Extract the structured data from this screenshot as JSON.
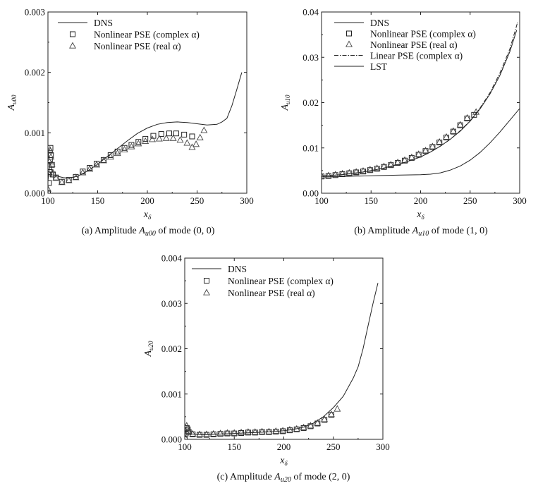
{
  "chart_data": [
    {
      "id": "a",
      "type": "line",
      "caption": "(a) Amplitude A_u00 of mode (0, 0)",
      "caption_parts": {
        "pre": "(a) Amplitude ",
        "sym": "A",
        "sub": "u00",
        "post": " of mode (0, 0)"
      },
      "xlabel": "x",
      "xlabel_sub": "δ",
      "ylabel": "A",
      "ylabel_sub": "u00",
      "xlim": [
        100,
        300
      ],
      "ylim": [
        0,
        0.003
      ],
      "xticks": [
        100,
        150,
        200,
        250,
        300
      ],
      "yticks": [
        0,
        0.001,
        0.002,
        0.003
      ],
      "ytick_labels": [
        "0.000",
        "0.001",
        "0.002",
        "0.003"
      ],
      "legend": {
        "placement": "top-left"
      },
      "series": [
        {
          "name": "DNS",
          "style": "solid",
          "x": [
            100,
            102,
            104,
            106,
            110,
            115,
            120,
            130,
            140,
            150,
            160,
            170,
            180,
            190,
            200,
            210,
            220,
            230,
            240,
            250,
            260,
            270,
            275,
            280,
            285,
            290,
            295
          ],
          "y": [
            0.0002,
            0.0005,
            0.0004,
            0.0003,
            0.00028,
            0.00026,
            0.00025,
            0.00028,
            0.00037,
            0.00048,
            0.00061,
            0.00074,
            0.00087,
            0.00099,
            0.00108,
            0.00114,
            0.00117,
            0.00118,
            0.00117,
            0.00115,
            0.00113,
            0.00114,
            0.00118,
            0.00124,
            0.00145,
            0.00172,
            0.002
          ]
        },
        {
          "name": "Nonlinear PSE (complex α)",
          "style": "square",
          "x": [
            100,
            101,
            101.5,
            102,
            102.5,
            103,
            104,
            105,
            108,
            114,
            121,
            128,
            135,
            142,
            149,
            156,
            163,
            170,
            177,
            184,
            191,
            198,
            206,
            214,
            222,
            229,
            237,
            245
          ],
          "y": [
            0.0,
            0.00017,
            0.00035,
            0.00055,
            0.00075,
            0.00063,
            0.00047,
            0.00031,
            0.00026,
            0.00019,
            0.00022,
            0.00027,
            0.00036,
            0.00042,
            0.00049,
            0.00055,
            0.00063,
            0.00069,
            0.00075,
            0.0008,
            0.00085,
            0.0009,
            0.00095,
            0.00098,
            0.00099,
            0.00099,
            0.00097,
            0.00094
          ]
        },
        {
          "name": "Nonlinear PSE (real α)",
          "style": "triangle",
          "x": [
            100,
            101,
            101.5,
            102,
            102.5,
            103,
            104,
            105,
            108,
            114,
            121,
            128,
            135,
            142,
            149,
            156,
            163,
            170,
            177,
            184,
            191,
            198,
            205,
            212,
            219,
            226,
            233,
            240,
            245,
            249,
            253,
            257
          ],
          "y": [
            7e-05,
            0.00032,
            0.00052,
            0.00072,
            0.0007,
            0.0006,
            0.00048,
            0.00034,
            0.00025,
            0.00018,
            0.00021,
            0.00026,
            0.00034,
            0.0004,
            0.00047,
            0.00054,
            0.0006,
            0.00066,
            0.00072,
            0.00077,
            0.00082,
            0.00086,
            0.00089,
            0.0009,
            0.00091,
            0.00091,
            0.00088,
            0.00083,
            0.00076,
            0.00081,
            0.00092,
            0.00104
          ]
        }
      ]
    },
    {
      "id": "b",
      "type": "line",
      "caption": "(b) Amplitude A_u10 of mode (1, 0)",
      "caption_parts": {
        "pre": "(b) Amplitude ",
        "sym": "A",
        "sub": "u10",
        "post": " of mode (1, 0)"
      },
      "xlabel": "x",
      "xlabel_sub": "δ",
      "ylabel": "A",
      "ylabel_sub": "u10",
      "xlim": [
        100,
        300
      ],
      "ylim": [
        0,
        0.04
      ],
      "xticks": [
        100,
        150,
        200,
        250,
        300
      ],
      "yticks": [
        0,
        0.01,
        0.02,
        0.03,
        0.04
      ],
      "ytick_labels": [
        "0.00",
        "0.01",
        "0.02",
        "0.03",
        "0.04"
      ],
      "legend": {
        "placement": "top-left"
      },
      "series": [
        {
          "name": "DNS",
          "style": "solid",
          "x": [
            100,
            120,
            140,
            160,
            180,
            200,
            210,
            220,
            230,
            240,
            250,
            260,
            270,
            280,
            290,
            297
          ],
          "y": [
            0.0038,
            0.0041,
            0.0046,
            0.0054,
            0.0065,
            0.008,
            0.0091,
            0.0104,
            0.0119,
            0.0137,
            0.0159,
            0.0186,
            0.0219,
            0.026,
            0.0312,
            0.036
          ]
        },
        {
          "name": "Nonlinear PSE (complex α)",
          "style": "square",
          "x": [
            100,
            107,
            114,
            121,
            128,
            135,
            142,
            149,
            156,
            163,
            170,
            177,
            184,
            191,
            198,
            205,
            212,
            219,
            226,
            233,
            240,
            247,
            254
          ],
          "y": [
            0.0037,
            0.0038,
            0.004,
            0.0042,
            0.0044,
            0.0046,
            0.0048,
            0.0051,
            0.0054,
            0.0058,
            0.0062,
            0.0067,
            0.0072,
            0.0078,
            0.0085,
            0.0093,
            0.0102,
            0.0112,
            0.0123,
            0.0136,
            0.015,
            0.0165,
            0.0173
          ]
        },
        {
          "name": "Nonlinear PSE (real α)",
          "style": "triangle",
          "x": [
            100,
            107,
            114,
            121,
            128,
            135,
            142,
            149,
            156,
            163,
            170,
            177,
            184,
            191,
            198,
            205,
            212,
            219,
            226,
            233,
            240,
            247,
            256
          ],
          "y": [
            0.0038,
            0.0039,
            0.0041,
            0.0043,
            0.0045,
            0.0047,
            0.0049,
            0.0052,
            0.0055,
            0.0059,
            0.0063,
            0.0068,
            0.0073,
            0.0079,
            0.0086,
            0.0094,
            0.0103,
            0.0113,
            0.0124,
            0.0137,
            0.0151,
            0.0166,
            0.0179
          ]
        },
        {
          "name": "Linear PSE (complex α)",
          "style": "dashdot",
          "x": [
            100,
            120,
            140,
            160,
            180,
            200,
            210,
            220,
            230,
            240,
            250,
            260,
            270,
            280,
            290,
            298
          ],
          "y": [
            0.0038,
            0.0041,
            0.0046,
            0.0054,
            0.0065,
            0.008,
            0.0091,
            0.0104,
            0.0119,
            0.0138,
            0.016,
            0.0188,
            0.0222,
            0.0265,
            0.0318,
            0.0378
          ]
        },
        {
          "name": "LST",
          "style": "solid",
          "x": [
            100,
            120,
            140,
            160,
            180,
            200,
            210,
            220,
            230,
            240,
            250,
            260,
            270,
            280,
            290,
            300
          ],
          "y": [
            0.0036,
            0.0037,
            0.0038,
            0.0039,
            0.004,
            0.0041,
            0.0042,
            0.0045,
            0.0051,
            0.006,
            0.0073,
            0.009,
            0.0111,
            0.0135,
            0.0161,
            0.0187
          ]
        }
      ]
    },
    {
      "id": "c",
      "type": "line",
      "caption": "(c) Amplitude A_u20 of mode (2, 0)",
      "caption_parts": {
        "pre": "(c) Amplitude ",
        "sym": "A",
        "sub": "u20",
        "post": " of mode (2, 0)"
      },
      "xlabel": "x",
      "xlabel_sub": "δ",
      "ylabel": "A",
      "ylabel_sub": "u20",
      "xlim": [
        100,
        300
      ],
      "ylim": [
        0,
        0.004
      ],
      "xticks": [
        100,
        150,
        200,
        250,
        300
      ],
      "yticks": [
        0,
        0.001,
        0.002,
        0.003,
        0.004
      ],
      "ytick_labels": [
        "0.000",
        "0.001",
        "0.002",
        "0.003",
        "0.004"
      ],
      "legend": {
        "placement": "top-left"
      },
      "series": [
        {
          "name": "DNS",
          "style": "solid",
          "x": [
            100,
            102,
            104,
            106,
            110,
            120,
            130,
            140,
            150,
            160,
            170,
            180,
            190,
            200,
            210,
            220,
            230,
            240,
            250,
            260,
            270,
            275,
            280,
            285,
            290,
            295
          ],
          "y": [
            0.0001,
            0.0002,
            0.00014,
            0.00012,
            0.00011,
            0.0001,
            0.00011,
            0.00012,
            0.00013,
            0.00014,
            0.00015,
            0.00016,
            0.00017,
            0.00019,
            0.00022,
            0.00027,
            0.00036,
            0.0005,
            0.0007,
            0.00095,
            0.00135,
            0.0016,
            0.002,
            0.0025,
            0.003,
            0.00345
          ]
        },
        {
          "name": "Nonlinear PSE (complex α)",
          "style": "square",
          "x": [
            100,
            101,
            102,
            103,
            104,
            108,
            115,
            122,
            129,
            136,
            143,
            150,
            157,
            164,
            171,
            178,
            185,
            192,
            199,
            206,
            213,
            220,
            227,
            234,
            241,
            248
          ],
          "y": [
            0.0,
            0.00013,
            0.00025,
            0.00022,
            0.00016,
            0.00011,
            0.0001,
            0.0001,
            0.00011,
            0.00012,
            0.00013,
            0.00013,
            0.00014,
            0.00015,
            0.00015,
            0.00016,
            0.00016,
            0.00017,
            0.00018,
            0.0002,
            0.00022,
            0.00025,
            0.00029,
            0.00035,
            0.00043,
            0.00054
          ]
        },
        {
          "name": "Nonlinear PSE (real α)",
          "style": "triangle",
          "x": [
            100,
            101,
            102,
            103,
            104,
            108,
            115,
            122,
            129,
            136,
            143,
            150,
            157,
            164,
            171,
            178,
            185,
            192,
            199,
            206,
            213,
            220,
            227,
            234,
            241,
            248,
            254
          ],
          "y": [
            5e-05,
            0.00018,
            0.0003,
            0.00025,
            0.00018,
            0.00012,
            0.00011,
            0.00011,
            0.00012,
            0.00013,
            0.00014,
            0.00014,
            0.00015,
            0.00016,
            0.00016,
            0.00017,
            0.00017,
            0.00018,
            0.00019,
            0.00021,
            0.00023,
            0.00026,
            0.0003,
            0.00036,
            0.00044,
            0.00055,
            0.00067
          ]
        }
      ]
    }
  ]
}
